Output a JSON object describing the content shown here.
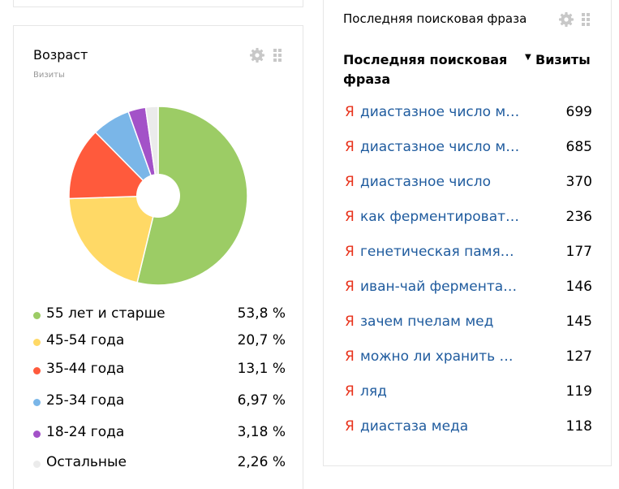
{
  "age_widget": {
    "title": "Возраст",
    "subtitle": "Визиты",
    "settings_icon": "gear-icon",
    "drag_icon": "grip-icon",
    "chart_data": {
      "type": "pie",
      "title": "Возраст",
      "unit": "%",
      "categories": [
        "55 лет и старше",
        "45-54 года",
        "35-44 года",
        "25-34 года",
        "18-24 года",
        "Остальные"
      ],
      "values": [
        53.8,
        20.7,
        13.1,
        6.97,
        3.18,
        2.26
      ],
      "colors": [
        "#9ccc65",
        "#ffd966",
        "#ff5a3c",
        "#7ab6e8",
        "#a352c8",
        "#ebebeb"
      ],
      "donut_hole": true
    },
    "legend": [
      {
        "label": "55 лет и старше",
        "value": "53,8 %",
        "color": "#9ccc65"
      },
      {
        "label": "45-54 года",
        "value": "20,7 %",
        "color": "#ffd966"
      },
      {
        "label": "35-44 года",
        "value": "13,1 %",
        "color": "#ff5a3c"
      },
      {
        "label": "25-34 года",
        "value": "6,97 %",
        "color": "#7ab6e8"
      },
      {
        "label": "18-24 года",
        "value": "3,18 %",
        "color": "#a352c8"
      },
      {
        "label": "Остальные",
        "value": "2,26 %",
        "color": "#ebebeb"
      }
    ]
  },
  "search_widget": {
    "title": "Последняя поисковая фраза",
    "settings_icon": "gear-icon",
    "drag_icon": "grip-icon",
    "column_phrase": "Последняя поисковая фраза",
    "column_visits": "Визиты",
    "sort_indicator": "▼",
    "engine_icon": "Я",
    "rows": [
      {
        "phrase": "диастазное число м…",
        "visits": "699"
      },
      {
        "phrase": "диастазное число м…",
        "visits": "685"
      },
      {
        "phrase": "диастазное число",
        "visits": "370"
      },
      {
        "phrase": "как ферментироват…",
        "visits": "236"
      },
      {
        "phrase": "генетическая памя…",
        "visits": "177"
      },
      {
        "phrase": "иван-чай фермента…",
        "visits": "146"
      },
      {
        "phrase": "зачем пчелам мед",
        "visits": "145"
      },
      {
        "phrase": "можно ли хранить …",
        "visits": "127"
      },
      {
        "phrase": "ляд",
        "visits": "119"
      },
      {
        "phrase": "диастаза меда",
        "visits": "118"
      }
    ]
  }
}
